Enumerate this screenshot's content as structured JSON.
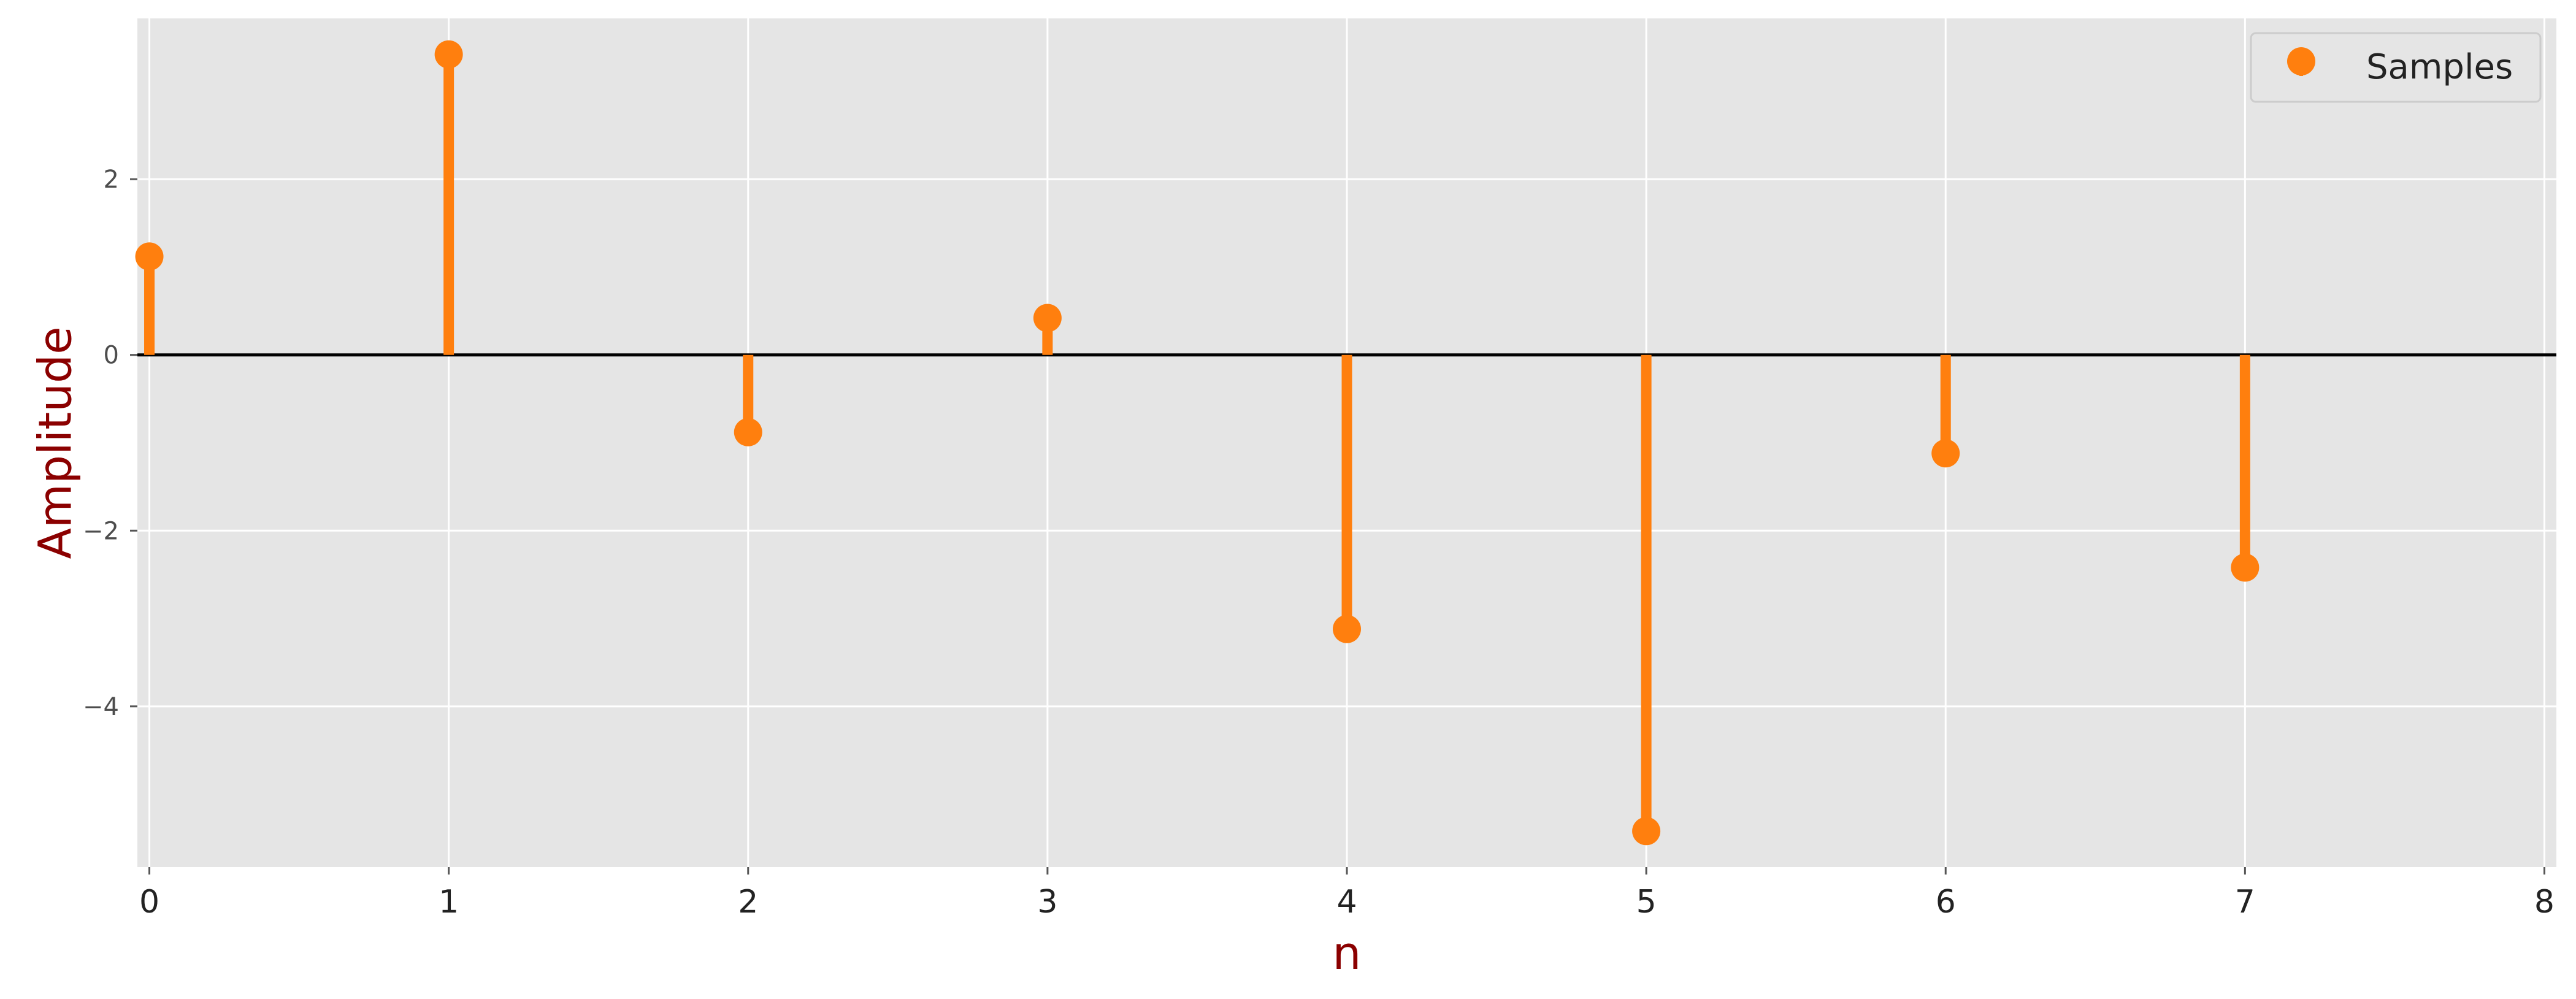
{
  "chart_data": {
    "type": "stem",
    "title": "",
    "xlabel": "n",
    "ylabel": "Amplitude",
    "x": [
      0,
      1,
      2,
      3,
      4,
      5,
      6,
      7
    ],
    "series": [
      {
        "name": "Samples",
        "values": [
          1.12,
          3.42,
          -0.88,
          0.42,
          -3.12,
          -5.42,
          -1.12,
          -2.42
        ],
        "color": "#ff7f0e"
      }
    ],
    "xlim": [
      -0.04,
      8.04
    ],
    "ylim": [
      -5.83,
      3.83
    ],
    "xticks": [
      0,
      1,
      2,
      3,
      4,
      5,
      6,
      7,
      8
    ],
    "xtick_labels": [
      "0",
      "1",
      "2",
      "3",
      "4",
      "5",
      "6",
      "7",
      "8"
    ],
    "yticks": [
      -4,
      -2,
      0,
      2
    ],
    "ytick_labels": [
      "−4",
      "−2",
      "0",
      "2"
    ],
    "grid": true,
    "baseline": 0,
    "legend": {
      "position": "top-right",
      "label": "Samples"
    },
    "colors": {
      "plot_background": "#e5e5e5",
      "grid": "#ffffff",
      "baseline": "#000000",
      "axis_title": "#8b0000",
      "tick_label": "#4d4d4d",
      "x_tick_label": "#222222"
    }
  }
}
